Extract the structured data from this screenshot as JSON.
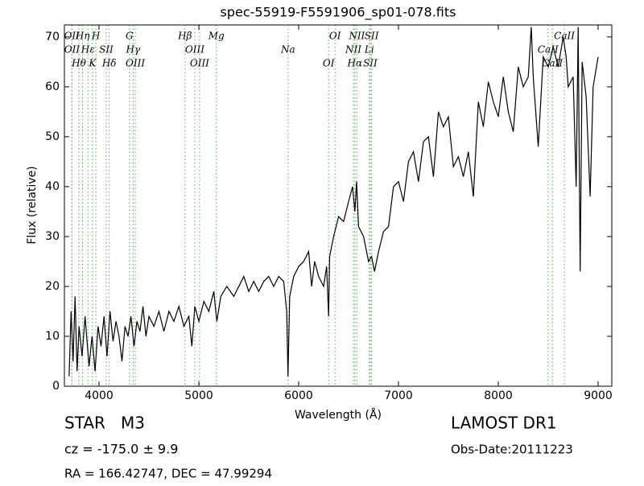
{
  "chart_data": {
    "type": "line",
    "title": "spec-55919-F5591906_sp01-078.fits",
    "x_label": "Wavelength (Å)",
    "y_label": "Flux (relative)",
    "xlim": [
      3653,
      9137
    ],
    "ylim": [
      0,
      72.4
    ],
    "xticks": [
      4000,
      5000,
      6000,
      7000,
      8000,
      9000
    ],
    "yticks": [
      0,
      10,
      20,
      30,
      40,
      50,
      60,
      70
    ],
    "series": [
      {
        "color": "#000000",
        "x": [
          3700,
          3720,
          3740,
          3760,
          3780,
          3800,
          3830,
          3860,
          3900,
          3930,
          3960,
          3990,
          4020,
          4050,
          4080,
          4110,
          4140,
          4170,
          4200,
          4230,
          4260,
          4290,
          4320,
          4350,
          4380,
          4410,
          4440,
          4470,
          4500,
          4550,
          4600,
          4650,
          4700,
          4750,
          4800,
          4850,
          4900,
          4930,
          4960,
          5000,
          5050,
          5100,
          5150,
          5180,
          5220,
          5280,
          5350,
          5400,
          5450,
          5500,
          5550,
          5600,
          5650,
          5700,
          5750,
          5800,
          5850,
          5880,
          5893,
          5910,
          5950,
          6000,
          6050,
          6100,
          6130,
          6160,
          6200,
          6250,
          6280,
          6300,
          6310,
          6350,
          6400,
          6450,
          6500,
          6540,
          6563,
          6580,
          6600,
          6650,
          6700,
          6730,
          6760,
          6800,
          6850,
          6900,
          6950,
          7000,
          7050,
          7100,
          7150,
          7200,
          7250,
          7300,
          7350,
          7400,
          7450,
          7500,
          7550,
          7600,
          7650,
          7700,
          7750,
          7800,
          7850,
          7900,
          7950,
          8000,
          8050,
          8100,
          8150,
          8200,
          8250,
          8300,
          8330,
          8350,
          8400,
          8450,
          8500,
          8550,
          8600,
          8650,
          8680,
          8700,
          8750,
          8780,
          8800,
          8820,
          8840,
          8880,
          8920,
          8950,
          9000
        ],
        "values": [
          2,
          15,
          5,
          18,
          3,
          12,
          6,
          14,
          4,
          10,
          3,
          12,
          8,
          14,
          6,
          15,
          9,
          13,
          10,
          5,
          12,
          10,
          14,
          8,
          13,
          11,
          16,
          10,
          14,
          12,
          15,
          11,
          15,
          13,
          16,
          12,
          14,
          8,
          16,
          13,
          17,
          15,
          19,
          13,
          18,
          20,
          18,
          20,
          22,
          19,
          21,
          19,
          21,
          22,
          20,
          22,
          21,
          15,
          2,
          18,
          22,
          24,
          25,
          27,
          20,
          25,
          22,
          20,
          24,
          14,
          26,
          30,
          34,
          33,
          37,
          40,
          35,
          41,
          32,
          30,
          25,
          26,
          23,
          27,
          31,
          32,
          40,
          41,
          37,
          45,
          47,
          41,
          49,
          50,
          42,
          55,
          52,
          54,
          44,
          46,
          42,
          47,
          38,
          57,
          52,
          61,
          57,
          54,
          62,
          55,
          51,
          64,
          60,
          62,
          72,
          62,
          48,
          66,
          64,
          68,
          64,
          70,
          66,
          60,
          62,
          40,
          72,
          23,
          65,
          58,
          38,
          60,
          66
        ]
      }
    ],
    "marker_color": "#4daf4a",
    "lines": [
      {
        "wavelength": 3727,
        "label": "OII"
      },
      {
        "wavelength": 3729,
        "label": "OII"
      },
      {
        "wavelength": 3798,
        "label": "Hθ"
      },
      {
        "wavelength": 3835,
        "label": "Hη"
      },
      {
        "wavelength": 3889,
        "label": "Hε"
      },
      {
        "wavelength": 3934,
        "label": "K"
      },
      {
        "wavelength": 3968,
        "label": "H"
      },
      {
        "wavelength": 4072,
        "label": "SII"
      },
      {
        "wavelength": 4102,
        "label": "Hδ"
      },
      {
        "wavelength": 4305,
        "label": "G"
      },
      {
        "wavelength": 4341,
        "label": "Hγ"
      },
      {
        "wavelength": 4363,
        "label": "OIII"
      },
      {
        "wavelength": 4861,
        "label": "Hβ"
      },
      {
        "wavelength": 4959,
        "label": "OIII"
      },
      {
        "wavelength": 5007,
        "label": "OIII"
      },
      {
        "wavelength": 5175,
        "label": "Mg"
      },
      {
        "wavelength": 5894,
        "label": "Na"
      },
      {
        "wavelength": 6300,
        "label": "OI"
      },
      {
        "wavelength": 6364,
        "label": "OI"
      },
      {
        "wavelength": 6548,
        "label": "NII"
      },
      {
        "wavelength": 6563,
        "label": "Hα"
      },
      {
        "wavelength": 6583,
        "label": "NII"
      },
      {
        "wavelength": 6708,
        "label": "Li"
      },
      {
        "wavelength": 6717,
        "label": "SII"
      },
      {
        "wavelength": 6731,
        "label": "SII"
      },
      {
        "wavelength": 8498,
        "label": "CaII"
      },
      {
        "wavelength": 8542,
        "label": "CaII"
      },
      {
        "wavelength": 8662,
        "label": "CaII"
      }
    ]
  },
  "footer": {
    "object": "STAR   M3",
    "cz": "cz = -175.0 ± 9.9",
    "coords": "RA = 166.42747, DEC = 47.99294",
    "survey": "LAMOST DR1",
    "date": "Obs-Date:20111223"
  }
}
